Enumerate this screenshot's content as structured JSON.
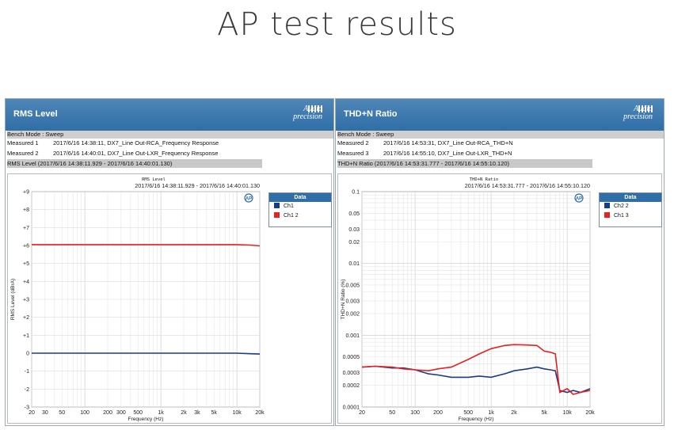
{
  "page_title": "AP test results",
  "panels": [
    {
      "header": "RMS Level",
      "logo": {
        "line1": "Audio",
        "line2": "precision"
      },
      "bench_mode": "Bench Mode : Sweep",
      "measured": [
        {
          "label": "Measured 1",
          "text": "2017/6/16 14:38:11, DX7_Line Out-RCA_Frequency Response"
        },
        {
          "label": "Measured 2",
          "text": "2017/6/16 14:40:01, DX7_Line Out-LXR_Frequency Response"
        }
      ],
      "range_label": "RMS Level (2017/6/16 14:38:11.929 - 2017/6/16 14:40:01.130)",
      "legend": {
        "title": "Data",
        "items": [
          {
            "name": "Ch1",
            "color": "#1a3a8c"
          },
          {
            "name": "Ch1 2",
            "color": "#e82020"
          }
        ]
      },
      "chart_data": {
        "type": "line",
        "title": "RMS Level",
        "subtitle": "2017/6/16 14:38:11.929 - 2017/6/16 14:40:01.130",
        "xlabel": "Frequency (Hz)",
        "ylabel": "RMS Level (dBrA)",
        "xscale": "log",
        "xlim": [
          20,
          20000
        ],
        "ylim": [
          -3,
          9
        ],
        "x_ticks": [
          20,
          30,
          50,
          100,
          200,
          300,
          500,
          1000,
          2000,
          3000,
          5000,
          10000,
          20000
        ],
        "x_tick_labels": [
          "20",
          "30",
          "50",
          "100",
          "200",
          "300",
          "500",
          "1k",
          "2k",
          "3k",
          "5k",
          "10k",
          "20k"
        ],
        "y_ticks": [
          -3,
          -2,
          -1,
          0,
          1,
          2,
          3,
          4,
          5,
          6,
          7,
          8,
          9
        ],
        "y_tick_labels": [
          "-3",
          "-2",
          "-1",
          "0",
          "+1",
          "+2",
          "+3",
          "+4",
          "+5",
          "+6",
          "+7",
          "+8",
          "+9"
        ],
        "grid": true,
        "series": [
          {
            "name": "Ch1",
            "color": "#1a3a8c",
            "x": [
              20,
              100,
              1000,
              10000,
              15000,
              20000
            ],
            "y": [
              0.0,
              0.0,
              0.0,
              0.0,
              -0.03,
              -0.05
            ]
          },
          {
            "name": "Ch1 2",
            "color": "#e82020",
            "x": [
              20,
              100,
              1000,
              10000,
              15000,
              20000
            ],
            "y": [
              6.05,
              6.05,
              6.05,
              6.05,
              6.02,
              5.98
            ]
          }
        ]
      }
    },
    {
      "header": "THD+N Ratio",
      "logo": {
        "line1": "Audio",
        "line2": "precision"
      },
      "bench_mode": "Bench Mode : Sweep",
      "measured": [
        {
          "label": "Measured 2",
          "text": "2017/6/16 14:53:31, DX7_Line Out-RCA_THD+N"
        },
        {
          "label": "Measured 3",
          "text": "2017/6/16 14:55:10, DX7_Line Out-LXR_THD+N"
        }
      ],
      "range_label": "THD+N Ratio (2017/6/16 14:53:31.777 - 2017/6/16 14:55:10.120)",
      "legend": {
        "title": "Data",
        "items": [
          {
            "name": "Ch2 2",
            "color": "#1a3a8c"
          },
          {
            "name": "Ch1 3",
            "color": "#e82020"
          }
        ]
      },
      "chart_data": {
        "type": "line",
        "title": "THD+N Ratio",
        "subtitle": "2017/6/16 14:53:31.777 - 2017/6/16 14:55:10.120",
        "xlabel": "Frequency (Hz)",
        "ylabel": "THD+N Ratio (%)",
        "xscale": "log",
        "yscale": "log",
        "xlim": [
          20,
          20000
        ],
        "ylim": [
          0.0001,
          0.1
        ],
        "x_ticks": [
          20,
          50,
          100,
          200,
          500,
          1000,
          2000,
          5000,
          10000,
          20000
        ],
        "x_tick_labels": [
          "20",
          "50",
          "100",
          "200",
          "500",
          "1k",
          "2k",
          "5k",
          "10k",
          "20k"
        ],
        "y_ticks": [
          0.0001,
          0.0002,
          0.0003,
          0.0005,
          0.001,
          0.002,
          0.003,
          0.005,
          0.01,
          0.02,
          0.03,
          0.05,
          0.1
        ],
        "y_tick_labels": [
          "0.0001",
          "0.0002",
          "0.0003",
          "0.0005",
          "0.001",
          "0.002",
          "0.003",
          "0.005",
          "0.01",
          "0.02",
          "0.03",
          "0.05",
          "0.1"
        ],
        "grid": true,
        "series": [
          {
            "name": "Ch2 2",
            "color": "#1a3a8c",
            "x": [
              20,
              30,
              50,
              70,
              100,
              150,
              200,
              300,
              500,
              700,
              1000,
              1500,
              2000,
              3000,
              4000,
              5000,
              6000,
              7000,
              8000,
              10000,
              12000,
              15000,
              20000
            ],
            "y": [
              0.00036,
              0.00037,
              0.00035,
              0.00035,
              0.00033,
              0.00029,
              0.00028,
              0.00026,
              0.00026,
              0.00027,
              0.00026,
              0.00029,
              0.00032,
              0.00034,
              0.00036,
              0.00034,
              0.00033,
              0.00032,
              0.00017,
              0.00016,
              0.00017,
              0.00016,
              0.00018
            ]
          },
          {
            "name": "Ch1 3",
            "color": "#e82020",
            "x": [
              20,
              30,
              50,
              70,
              100,
              150,
              200,
              300,
              500,
              700,
              1000,
              1500,
              2000,
              3000,
              4000,
              5000,
              6000,
              7000,
              8000,
              10000,
              12000,
              15000,
              20000
            ],
            "y": [
              0.00036,
              0.00037,
              0.00036,
              0.00034,
              0.00033,
              0.00032,
              0.00034,
              0.00036,
              0.00046,
              0.00055,
              0.00065,
              0.00072,
              0.00074,
              0.00073,
              0.00072,
              0.0006,
              0.00058,
              0.00055,
              0.00016,
              0.00018,
              0.00015,
              0.00016,
              0.00017
            ]
          }
        ]
      }
    }
  ]
}
